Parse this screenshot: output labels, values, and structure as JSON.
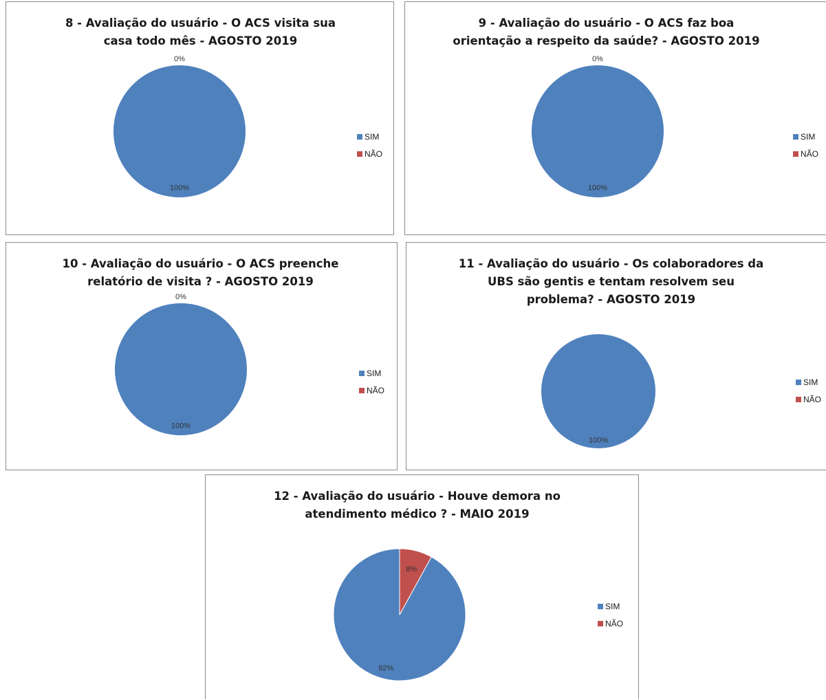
{
  "colors": {
    "sim": "#4f81bd",
    "nao": "#c0504d"
  },
  "chart_data": [
    {
      "type": "pie",
      "title": "8 - Avaliação do usuário - O ACS visita sua\ncasa todo mês - AGOSTO 2019",
      "series": [
        {
          "name": "SIM",
          "value": 100,
          "label": "100%"
        },
        {
          "name": "NÃO",
          "value": 0,
          "label": "0%"
        }
      ],
      "legend": "right"
    },
    {
      "type": "pie",
      "title": "9 - Avaliação do usuário - O ACS faz boa\norientação a respeito da saúde? - AGOSTO 2019",
      "series": [
        {
          "name": "SIM",
          "value": 100,
          "label": "100%"
        },
        {
          "name": "NÃO",
          "value": 0,
          "label": "0%"
        }
      ],
      "legend": "right"
    },
    {
      "type": "pie",
      "title": "10 - Avaliação do usuário - O ACS preenche\nrelatório de visita ? - AGOSTO 2019",
      "series": [
        {
          "name": "SIM",
          "value": 100,
          "label": "100%"
        },
        {
          "name": "NÃO",
          "value": 0,
          "label": "0%"
        }
      ],
      "legend": "right"
    },
    {
      "type": "pie",
      "title": "11 - Avaliação do usuário - Os colaboradores da\nUBS são gentis e tentam resolvem seu\nproblema? - AGOSTO 2019",
      "series": [
        {
          "name": "SIM",
          "value": 100,
          "label": "100%"
        },
        {
          "name": "NÃO",
          "value": 0,
          "label": ""
        }
      ],
      "legend": "right"
    },
    {
      "type": "pie",
      "title": "12 - Avaliação do usuário - Houve demora no\natendimento médico ? - MAIO 2019",
      "series": [
        {
          "name": "SIM",
          "value": 92,
          "label": "92%"
        },
        {
          "name": "NÃO",
          "value": 8,
          "label": "8%"
        }
      ],
      "legend": "right"
    }
  ]
}
